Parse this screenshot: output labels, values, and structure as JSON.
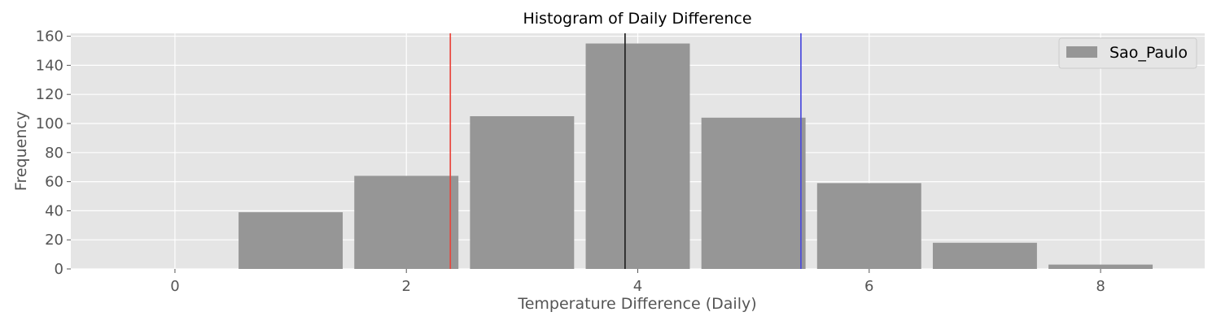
{
  "chart_data": {
    "type": "bar",
    "title": "Histogram of Daily Difference",
    "xlabel": "Temperature Difference (Daily)",
    "ylabel": "Frequency",
    "xlim": [
      -0.9,
      8.9
    ],
    "ylim": [
      0,
      162
    ],
    "xticks": [
      0,
      2,
      4,
      6,
      8
    ],
    "yticks": [
      0,
      20,
      40,
      60,
      80,
      100,
      120,
      140,
      160
    ],
    "grid": true,
    "legend_position": "top-right",
    "series": [
      {
        "name": "Sao_Paulo",
        "color": "#969696",
        "bins": [
          {
            "x": 1,
            "value": 39
          },
          {
            "x": 2,
            "value": 64
          },
          {
            "x": 3,
            "value": 105
          },
          {
            "x": 4,
            "value": 155
          },
          {
            "x": 5,
            "value": 104
          },
          {
            "x": 6,
            "value": 59
          },
          {
            "x": 7,
            "value": 18
          },
          {
            "x": 8,
            "value": 3
          }
        ]
      }
    ],
    "vertical_lines": [
      {
        "x": 2.38,
        "color": "#e8453c"
      },
      {
        "x": 3.89,
        "color": "#222222"
      },
      {
        "x": 5.41,
        "color": "#4b4bdc"
      }
    ]
  }
}
